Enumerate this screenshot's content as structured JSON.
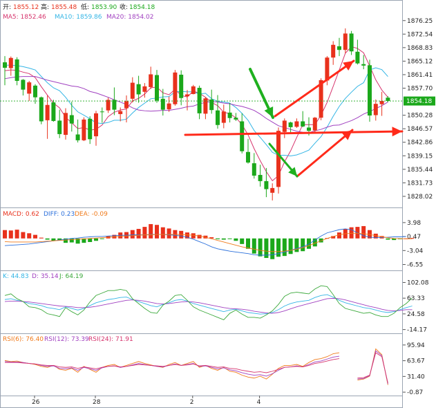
{
  "header": {
    "open_label": "开:",
    "open": "1855.12",
    "high_label": "高:",
    "high": "1855.48",
    "low_label": "低:",
    "low": "1853.90",
    "close_label": "收:",
    "close": "1854.18",
    "ma5": "MA5: 1852.46",
    "ma10": "MA10: 1859.86",
    "ma20": "MA20: 1854.02"
  },
  "macd_legend": {
    "macd": "MACD: 0.62",
    "diff": "DIFF: 0.23",
    "dea": "DEA: -0.09"
  },
  "kdj_legend": {
    "k": "K: 44.83",
    "d": "D: 35.14",
    "j": "J: 64.19"
  },
  "rsi_legend": {
    "r6": "RSI(6): 76.40",
    "r12": "RSI(12): 73.39",
    "r24": "RSI(24): 71.91"
  },
  "price_ticks": [
    "1876.25",
    "1872.54",
    "1868.83",
    "1865.12",
    "1861.41",
    "1857.70",
    "1854.18",
    "1850.28",
    "1846.57",
    "1842.86",
    "1839.15",
    "1835.44",
    "1831.73",
    "1828.02"
  ],
  "current_price": "1854.18",
  "macd_ticks": [
    "3.98",
    "0.47",
    "-3.04",
    "-6.55"
  ],
  "kdj_ticks": [
    "102.08",
    "63.33",
    "24.58",
    "-14.17"
  ],
  "rsi_ticks": [
    "95.94",
    "63.67",
    "31.40",
    "-0.87"
  ],
  "x_ticks": [
    "26",
    "28",
    "2",
    "4"
  ],
  "colors": {
    "up": "#e8311c",
    "down": "#1ba81b",
    "ma5": "#d6336c",
    "ma10": "#33b5e5",
    "ma20": "#a040c0",
    "macd_up": "#e8311c",
    "macd_down": "#1ba81b",
    "diff": "#2a6fdb",
    "dea": "#f07a1a",
    "k": "#33b5e5",
    "d": "#a040c0",
    "j": "#3aa83a",
    "rsi6": "#f07a1a",
    "rsi12": "#a040c0",
    "rsi24": "#d6336c",
    "annotation_red": "#ff2a1a",
    "annotation_green": "#1fb01f"
  },
  "chart_data": {
    "type": "candlestick",
    "y_range": [
      1826.3,
      1878.1
    ],
    "x_labels": [
      "26",
      "28",
      "2",
      "4"
    ],
    "candles": [
      [
        1864.8,
        1866.5,
        1858.5,
        1863.3
      ],
      [
        1863.2,
        1866.4,
        1861.1,
        1866.0
      ],
      [
        1865.6,
        1866.2,
        1858.5,
        1859.7
      ],
      [
        1860.0,
        1860.2,
        1855.7,
        1857.3
      ],
      [
        1856.2,
        1859.7,
        1854.2,
        1859.3
      ],
      [
        1858.4,
        1858.8,
        1853.4,
        1855.2
      ],
      [
        1855.2,
        1855.4,
        1847.8,
        1848.6
      ],
      [
        1848.9,
        1855.7,
        1843.8,
        1853.1
      ],
      [
        1853.8,
        1854.5,
        1848.5,
        1848.7
      ],
      [
        1848.8,
        1851.8,
        1844.0,
        1845.1
      ],
      [
        1844.9,
        1852.2,
        1843.6,
        1850.9
      ],
      [
        1850.3,
        1854.0,
        1845.8,
        1848.0
      ],
      [
        1845.0,
        1849.1,
        1842.8,
        1843.4
      ],
      [
        1843.4,
        1849.7,
        1843.2,
        1849.1
      ],
      [
        1849.3,
        1850.0,
        1842.4,
        1843.7
      ],
      [
        1844.5,
        1851.5,
        1841.9,
        1850.8
      ],
      [
        1851.3,
        1852.4,
        1848.2,
        1851.2
      ],
      [
        1851.6,
        1855.1,
        1850.9,
        1854.5
      ],
      [
        1854.5,
        1857.9,
        1850.3,
        1851.8
      ],
      [
        1850.6,
        1852.4,
        1848.6,
        1851.4
      ],
      [
        1852.2,
        1855.7,
        1848.3,
        1854.1
      ],
      [
        1854.8,
        1860.7,
        1853.8,
        1859.2
      ],
      [
        1858.8,
        1861.1,
        1853.7,
        1856.0
      ],
      [
        1856.7,
        1859.1,
        1855.1,
        1858.2
      ],
      [
        1858.0,
        1863.6,
        1857.5,
        1861.5
      ],
      [
        1861.3,
        1862.7,
        1853.7,
        1854.3
      ],
      [
        1854.8,
        1857.5,
        1850.2,
        1851.8
      ],
      [
        1851.9,
        1855.4,
        1851.2,
        1853.5
      ],
      [
        1853.3,
        1862.7,
        1852.9,
        1862.0
      ],
      [
        1861.4,
        1862.6,
        1853.0,
        1855.0
      ],
      [
        1855.5,
        1857.2,
        1851.6,
        1856.0
      ],
      [
        1856.1,
        1858.6,
        1856.0,
        1858.2
      ],
      [
        1857.8,
        1858.4,
        1849.2,
        1850.8
      ],
      [
        1850.7,
        1855.2,
        1849.2,
        1854.9
      ],
      [
        1854.6,
        1857.3,
        1850.7,
        1851.7
      ],
      [
        1851.6,
        1855.8,
        1846.6,
        1847.6
      ],
      [
        1848.2,
        1853.2,
        1846.7,
        1851.3
      ],
      [
        1851.0,
        1853.6,
        1848.3,
        1849.5
      ],
      [
        1849.6,
        1850.9,
        1848.7,
        1849.1
      ],
      [
        1848.6,
        1850.8,
        1839.8,
        1840.4
      ],
      [
        1840.2,
        1843.8,
        1837.0,
        1837.3
      ],
      [
        1837.1,
        1839.9,
        1832.9,
        1833.7
      ],
      [
        1833.9,
        1836.7,
        1830.7,
        1832.2
      ],
      [
        1832.2,
        1835.8,
        1827.8,
        1830.0
      ],
      [
        1829.0,
        1831.6,
        1826.9,
        1830.3
      ],
      [
        1830.6,
        1846.9,
        1828.8,
        1846.0
      ],
      [
        1845.7,
        1849.4,
        1844.0,
        1848.8
      ],
      [
        1848.3,
        1848.5,
        1845.1,
        1847.0
      ],
      [
        1847.1,
        1849.4,
        1846.8,
        1848.6
      ],
      [
        1848.6,
        1851.4,
        1847.0,
        1847.2
      ],
      [
        1846.9,
        1849.7,
        1844.7,
        1846.0
      ],
      [
        1846.1,
        1849.8,
        1845.2,
        1849.6
      ],
      [
        1849.6,
        1860.4,
        1848.9,
        1859.9
      ],
      [
        1859.8,
        1866.5,
        1858.5,
        1866.1
      ],
      [
        1866.1,
        1870.6,
        1864.1,
        1869.6
      ],
      [
        1869.2,
        1871.5,
        1866.5,
        1868.2
      ],
      [
        1868.2,
        1874.1,
        1867.3,
        1872.7
      ],
      [
        1872.7,
        1873.4,
        1866.8,
        1867.8
      ],
      [
        1867.7,
        1871.0,
        1864.2,
        1864.5
      ],
      [
        1864.3,
        1866.8,
        1862.9,
        1863.9
      ],
      [
        1864.0,
        1865.5,
        1848.5,
        1850.2
      ],
      [
        1850.3,
        1854.6,
        1848.8,
        1853.4
      ],
      [
        1853.3,
        1856.7,
        1850.1,
        1854.2
      ],
      [
        1855.1,
        1855.5,
        1853.9,
        1854.2
      ]
    ],
    "series": [
      {
        "name": "MA5",
        "values": [
          1862.5,
          1862.7,
          1862.6,
          1862.1,
          1861.7,
          1860.6,
          1858.1,
          1855.8,
          1853.6,
          1852.3,
          1849.7,
          1848.2,
          1846.6,
          1846.9,
          1846.2,
          1846.4,
          1847.6,
          1849.9,
          1851.1,
          1851.7,
          1852.0,
          1854.2,
          1854.9,
          1856.1,
          1857.8,
          1858.0,
          1856.4,
          1855.9,
          1857.4,
          1855.7,
          1855.3,
          1856.9,
          1856.3,
          1855.2,
          1853.8,
          1852.9,
          1851.1,
          1850.7,
          1849.6,
          1847.7,
          1844.9,
          1841.1,
          1837.8,
          1834.8,
          1832.3,
          1833.7,
          1837.5,
          1840.5,
          1844.2,
          1847.7,
          1847.7,
          1847.7,
          1850.3,
          1853.8,
          1858.2,
          1862.7,
          1867.3,
          1869.1,
          1868.6,
          1867.4,
          1863.8,
          1860.0,
          1857.2,
          1855.2
        ]
      },
      {
        "name": "MA10",
        "values": [
          1864.0,
          1864.0,
          1863.9,
          1863.6,
          1863.2,
          1862.7,
          1860.9,
          1859.2,
          1857.8,
          1857.0,
          1855.2,
          1853.0,
          1851.2,
          1850.3,
          1849.3,
          1848.2,
          1848.0,
          1848.3,
          1848.9,
          1848.9,
          1849.2,
          1850.9,
          1852.4,
          1853.6,
          1854.8,
          1855.0,
          1855.3,
          1855.4,
          1856.7,
          1856.8,
          1856.7,
          1856.7,
          1856.1,
          1856.3,
          1854.8,
          1854.1,
          1853.9,
          1853.6,
          1852.4,
          1850.8,
          1848.9,
          1846.1,
          1844.2,
          1842.2,
          1840.1,
          1839.3,
          1839.3,
          1839.1,
          1839.4,
          1840.0,
          1840.7,
          1842.6,
          1844.4,
          1847.0,
          1850.0,
          1852.7,
          1854.9,
          1856.6,
          1858.2,
          1859.2,
          1862.7,
          1863.3,
          1862.8,
          1860.9
        ]
      },
      {
        "name": "MA20",
        "values": [
          1860.3,
          1860.6,
          1860.8,
          1860.9,
          1860.9,
          1860.9,
          1860.4,
          1859.9,
          1859.5,
          1859.1,
          1858.7,
          1858.3,
          1858.1,
          1857.6,
          1856.8,
          1856.4,
          1855.8,
          1855.2,
          1854.5,
          1853.9,
          1853.2,
          1852.3,
          1851.7,
          1851.5,
          1851.4,
          1851.5,
          1851.6,
          1851.6,
          1851.9,
          1852.2,
          1852.6,
          1852.8,
          1853.4,
          1853.8,
          1854.0,
          1853.9,
          1853.6,
          1853.4,
          1853.0,
          1852.7,
          1852.2,
          1851.6,
          1850.6,
          1849.4,
          1848.4,
          1847.4,
          1846.9,
          1846.4,
          1845.9,
          1845.6,
          1845.5,
          1846.0,
          1846.4,
          1847.0,
          1847.5,
          1847.6,
          1848.2,
          1848.8,
          1849.6,
          1850.6,
          1851.3,
          1852.1,
          1852.9,
          1853.9
        ]
      }
    ],
    "macd": {
      "range": [
        -7.5,
        5.0
      ],
      "hist": [
        2.1,
        2.0,
        2.2,
        1.6,
        1.3,
        0.9,
        0.2,
        -0.3,
        -0.6,
        -0.5,
        -1.1,
        -1.0,
        -1.3,
        -1.1,
        -0.9,
        -0.6,
        -0.1,
        0.6,
        0.9,
        1.5,
        1.6,
        2.1,
        2.4,
        2.9,
        3.6,
        3.4,
        2.8,
        2.5,
        2.1,
        1.9,
        1.5,
        1.3,
        0.9,
        0.7,
        0.3,
        -0.2,
        -0.3,
        -0.1,
        -0.6,
        -1.4,
        -2.6,
        -3.8,
        -4.5,
        -4.9,
        -5.2,
        -4.6,
        -4.4,
        -3.9,
        -3.4,
        -3.2,
        -2.6,
        -2.0,
        -1.0,
        0.1,
        0.6,
        1.5,
        2.4,
        2.8,
        2.9,
        3.1,
        2.1,
        1.2,
        0.6,
        -0.3,
        -0.4,
        -0.2,
        0.0,
        0.1
      ],
      "diff": [
        -1.8,
        -1.7,
        -1.6,
        -1.5,
        -1.4,
        -1.2,
        -1.0,
        -0.8,
        -0.6,
        -0.4,
        -0.2,
        0.0,
        0.1,
        0.3,
        0.4,
        0.5,
        0.5,
        0.6,
        0.7,
        0.8,
        0.8,
        0.9,
        0.9,
        0.9,
        1.0,
        1.0,
        1.0,
        0.9,
        0.8,
        0.6,
        0.3,
        -0.2,
        -0.8,
        -1.4,
        -2.1,
        -2.6,
        -2.9,
        -3.2,
        -3.4,
        -3.6,
        -3.8,
        -4.1,
        -4.2,
        -4.2,
        -4.1,
        -3.8,
        -3.4,
        -3.0,
        -2.5,
        -2.1,
        -1.4,
        -0.4,
        0.6,
        1.4,
        1.8,
        2.2,
        2.4,
        2.2,
        1.4,
        0.7,
        0.3,
        0.23,
        0.23,
        0.3,
        0.4,
        0.4,
        0.47
      ],
      "dea": [
        -0.8,
        -0.9,
        -0.9,
        -0.9,
        -0.9,
        -0.9,
        -0.8,
        -0.7,
        -0.6,
        -0.5,
        -0.4,
        -0.3,
        -0.2,
        -0.1,
        0.0,
        0.1,
        0.2,
        0.3,
        0.4,
        0.5,
        0.6,
        0.7,
        0.8,
        0.9,
        0.9,
        1.0,
        1.0,
        1.0,
        1.0,
        1.0,
        0.9,
        0.8,
        0.6,
        0.3,
        -0.1,
        -0.5,
        -0.9,
        -1.3,
        -1.7,
        -2.1,
        -2.4,
        -2.7,
        -3.0,
        -3.2,
        -3.3,
        -3.3,
        -3.2,
        -3.0,
        -2.7,
        -2.3,
        -1.8,
        -1.2,
        -0.6,
        0.0,
        0.5,
        0.9,
        1.2,
        1.3,
        1.3,
        1.2,
        1.0,
        0.7,
        0.4,
        0.2,
        0.0,
        -0.05,
        -0.09,
        -0.09
      ]
    },
    "kdj": {
      "range": [
        -20,
        108
      ],
      "k": [
        60,
        62,
        58,
        55,
        50,
        48,
        45,
        40,
        38,
        35,
        42,
        38,
        34,
        38,
        45,
        52,
        56,
        60,
        62,
        65,
        66,
        60,
        55,
        50,
        45,
        42,
        48,
        52,
        58,
        60,
        56,
        50,
        46,
        42,
        38,
        34,
        30,
        34,
        36,
        32,
        28,
        26,
        24,
        25,
        28,
        35,
        44,
        50,
        54,
        56,
        58,
        65,
        70,
        72,
        66,
        58,
        52,
        48,
        44,
        40,
        38,
        34,
        30,
        28,
        30,
        35,
        40,
        44
      ],
      "d": [
        55,
        56,
        56,
        55,
        54,
        52,
        50,
        48,
        46,
        44,
        43,
        42,
        40,
        40,
        41,
        43,
        46,
        49,
        52,
        55,
        58,
        59,
        58,
        56,
        53,
        50,
        49,
        50,
        52,
        54,
        55,
        54,
        52,
        49,
        46,
        43,
        40,
        38,
        37,
        36,
        34,
        31,
        29,
        27,
        26,
        28,
        32,
        37,
        42,
        46,
        50,
        54,
        58,
        62,
        63,
        62,
        59,
        55,
        51,
        47,
        43,
        40,
        36,
        33,
        32,
        33,
        35,
        35
      ],
      "j": [
        70,
        74,
        62,
        55,
        42,
        40,
        35,
        25,
        22,
        18,
        40,
        30,
        22,
        34,
        54,
        70,
        76,
        82,
        82,
        85,
        82,
        62,
        50,
        38,
        28,
        26,
        46,
        56,
        70,
        72,
        58,
        42,
        34,
        28,
        22,
        16,
        10,
        26,
        34,
        24,
        16,
        16,
        14,
        22,
        32,
        48,
        68,
        76,
        78,
        76,
        74,
        86,
        94,
        92,
        72,
        50,
        38,
        34,
        30,
        26,
        28,
        22,
        18,
        18,
        26,
        40,
        50,
        64
      ]
    },
    "rsi": {
      "range": [
        -5,
        100
      ],
      "rsi6": [
        64,
        62,
        63,
        60,
        58,
        56,
        52,
        50,
        54,
        46,
        44,
        48,
        40,
        52,
        46,
        40,
        50,
        54,
        56,
        50,
        54,
        58,
        62,
        58,
        55,
        52,
        50,
        56,
        60,
        54,
        58,
        62,
        50,
        54,
        48,
        44,
        50,
        42,
        40,
        34,
        30,
        28,
        32,
        26,
        36,
        48,
        54,
        54,
        56,
        52,
        60,
        66,
        68,
        72,
        78,
        80,
        null,
        null,
        24,
        26,
        32,
        88,
        76,
        14
      ],
      "rsi12": [
        62,
        61,
        61,
        60,
        58,
        57,
        54,
        52,
        53,
        48,
        47,
        49,
        44,
        50,
        47,
        44,
        49,
        52,
        53,
        50,
        52,
        55,
        58,
        56,
        54,
        52,
        51,
        54,
        57,
        54,
        56,
        58,
        52,
        53,
        50,
        47,
        49,
        45,
        43,
        39,
        36,
        34,
        35,
        32,
        37,
        44,
        50,
        51,
        53,
        51,
        56,
        61,
        63,
        67,
        71,
        73,
        null,
        null,
        26,
        27,
        33,
        84,
        74,
        16
      ],
      "rsi24": [
        60,
        60,
        60,
        59,
        58,
        57,
        55,
        54,
        54,
        51,
        50,
        51,
        48,
        51,
        49,
        47,
        50,
        52,
        53,
        51,
        52,
        54,
        56,
        55,
        54,
        53,
        52,
        54,
        56,
        54,
        55,
        57,
        53,
        54,
        52,
        50,
        51,
        48,
        47,
        44,
        42,
        40,
        41,
        39,
        42,
        46,
        50,
        51,
        52,
        51,
        54,
        58,
        60,
        63,
        66,
        68,
        null,
        null,
        28,
        29,
        34,
        80,
        72,
        18
      ]
    }
  }
}
